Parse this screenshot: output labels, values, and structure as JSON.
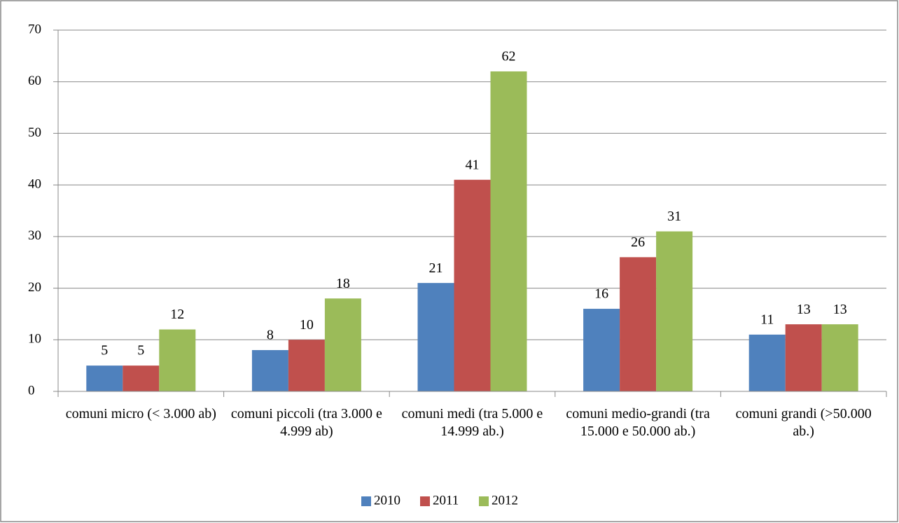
{
  "chart_data": {
    "type": "bar",
    "categories": [
      "comuni micro (< 3.000 ab)",
      "comuni piccoli (tra 3.000 e 4.999 ab)",
      "comuni medi (tra 5.000 e 14.999 ab.)",
      "comuni medio-grandi (tra 15.000 e 50.000 ab.)",
      "comuni grandi (>50.000 ab.)"
    ],
    "series": [
      {
        "name": "2010",
        "color": "#4f81bd",
        "values": [
          5,
          8,
          21,
          16,
          11
        ]
      },
      {
        "name": "2011",
        "color": "#c0504d",
        "values": [
          5,
          10,
          41,
          26,
          13
        ]
      },
      {
        "name": "2012",
        "color": "#9bbb59",
        "values": [
          12,
          18,
          62,
          31,
          13
        ]
      }
    ],
    "ylim": [
      0,
      70
    ],
    "yticks": [
      0,
      10,
      20,
      30,
      40,
      50,
      60,
      70
    ],
    "grid": true,
    "legend": "bottom"
  }
}
